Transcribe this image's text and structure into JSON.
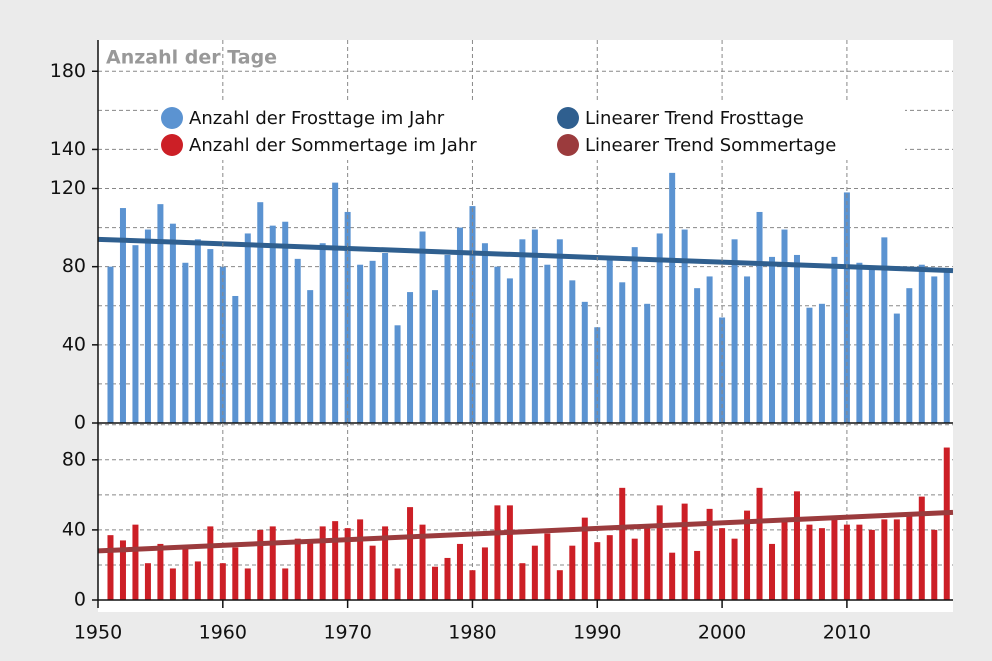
{
  "chart_data": [
    {
      "type": "bar",
      "title": "Anzahl der Tage",
      "x": [
        1951,
        1952,
        1953,
        1954,
        1955,
        1956,
        1957,
        1958,
        1959,
        1960,
        1961,
        1962,
        1963,
        1964,
        1965,
        1966,
        1967,
        1968,
        1969,
        1970,
        1971,
        1972,
        1973,
        1974,
        1975,
        1976,
        1977,
        1978,
        1979,
        1980,
        1981,
        1982,
        1983,
        1984,
        1985,
        1986,
        1987,
        1988,
        1989,
        1990,
        1991,
        1992,
        1993,
        1994,
        1995,
        1996,
        1997,
        1998,
        1999,
        2000,
        2001,
        2002,
        2003,
        2004,
        2005,
        2006,
        2007,
        2008,
        2009,
        2010,
        2011,
        2012,
        2013,
        2014,
        2015,
        2016,
        2017,
        2018
      ],
      "series": [
        {
          "name": "Anzahl  der Frosttage im Jahr",
          "type": "bar",
          "color": "#5b93d1",
          "values": [
            80,
            110,
            91,
            99,
            112,
            102,
            82,
            94,
            89,
            80,
            65,
            97,
            113,
            101,
            103,
            84,
            68,
            92,
            123,
            108,
            81,
            83,
            87,
            50,
            67,
            98,
            68,
            86,
            100,
            111,
            92,
            80,
            74,
            94,
            99,
            81,
            94,
            73,
            62,
            49,
            84,
            72,
            90,
            61,
            97,
            128,
            99,
            69,
            75,
            54,
            94,
            75,
            108,
            85,
            99,
            86,
            59,
            61,
            85,
            118,
            82,
            80,
            95,
            56,
            69,
            81,
            75,
            78
          ]
        },
        {
          "name": "Linearer Trend Frosttage",
          "type": "line",
          "color": "#2f5f8f",
          "x": [
            1950,
            2018.5
          ],
          "values": [
            94,
            78
          ]
        }
      ],
      "xlim": [
        1950,
        2018.5
      ],
      "ylim": [
        0,
        196
      ],
      "yticks": [
        0,
        40,
        80,
        120,
        140,
        180
      ],
      "minor_yticks": [
        20,
        60,
        100,
        160
      ],
      "grid": true,
      "legend": "top"
    },
    {
      "type": "bar",
      "x": [
        1951,
        1952,
        1953,
        1954,
        1955,
        1956,
        1957,
        1958,
        1959,
        1960,
        1961,
        1962,
        1963,
        1964,
        1965,
        1966,
        1967,
        1968,
        1969,
        1970,
        1971,
        1972,
        1973,
        1974,
        1975,
        1976,
        1977,
        1978,
        1979,
        1980,
        1981,
        1982,
        1983,
        1984,
        1985,
        1986,
        1987,
        1988,
        1989,
        1990,
        1991,
        1992,
        1993,
        1994,
        1995,
        1996,
        1997,
        1998,
        1999,
        2000,
        2001,
        2002,
        2003,
        2004,
        2005,
        2006,
        2007,
        2008,
        2009,
        2010,
        2011,
        2012,
        2013,
        2014,
        2015,
        2016,
        2017,
        2018
      ],
      "series": [
        {
          "name": "Anzahl  der Sommertage im Jahr",
          "type": "bar",
          "color": "#cc1f26",
          "values": [
            37,
            34,
            43,
            21,
            32,
            18,
            30,
            22,
            42,
            21,
            30,
            18,
            40,
            42,
            18,
            35,
            34,
            42,
            45,
            41,
            46,
            31,
            42,
            18,
            53,
            43,
            19,
            24,
            32,
            17,
            30,
            54,
            54,
            21,
            31,
            38,
            17,
            31,
            47,
            33,
            37,
            64,
            35,
            42,
            54,
            27,
            55,
            28,
            52,
            41,
            35,
            51,
            64,
            32,
            46,
            62,
            43,
            41,
            47,
            43,
            43,
            40,
            46,
            46,
            48,
            59,
            40,
            87
          ]
        },
        {
          "name": "Linearer Trend Sommertage",
          "type": "line",
          "color": "#9b3b3d",
          "x": [
            1950,
            2018.5
          ],
          "values": [
            28,
            50
          ]
        }
      ],
      "xlim": [
        1950,
        2018.5
      ],
      "xticks": [
        1950,
        1960,
        1970,
        1980,
        1990,
        2000,
        2010
      ],
      "ylim": [
        0,
        101
      ],
      "yticks": [
        0,
        40,
        80
      ],
      "minor_yticks": [
        20,
        60,
        100
      ],
      "grid": true
    }
  ]
}
